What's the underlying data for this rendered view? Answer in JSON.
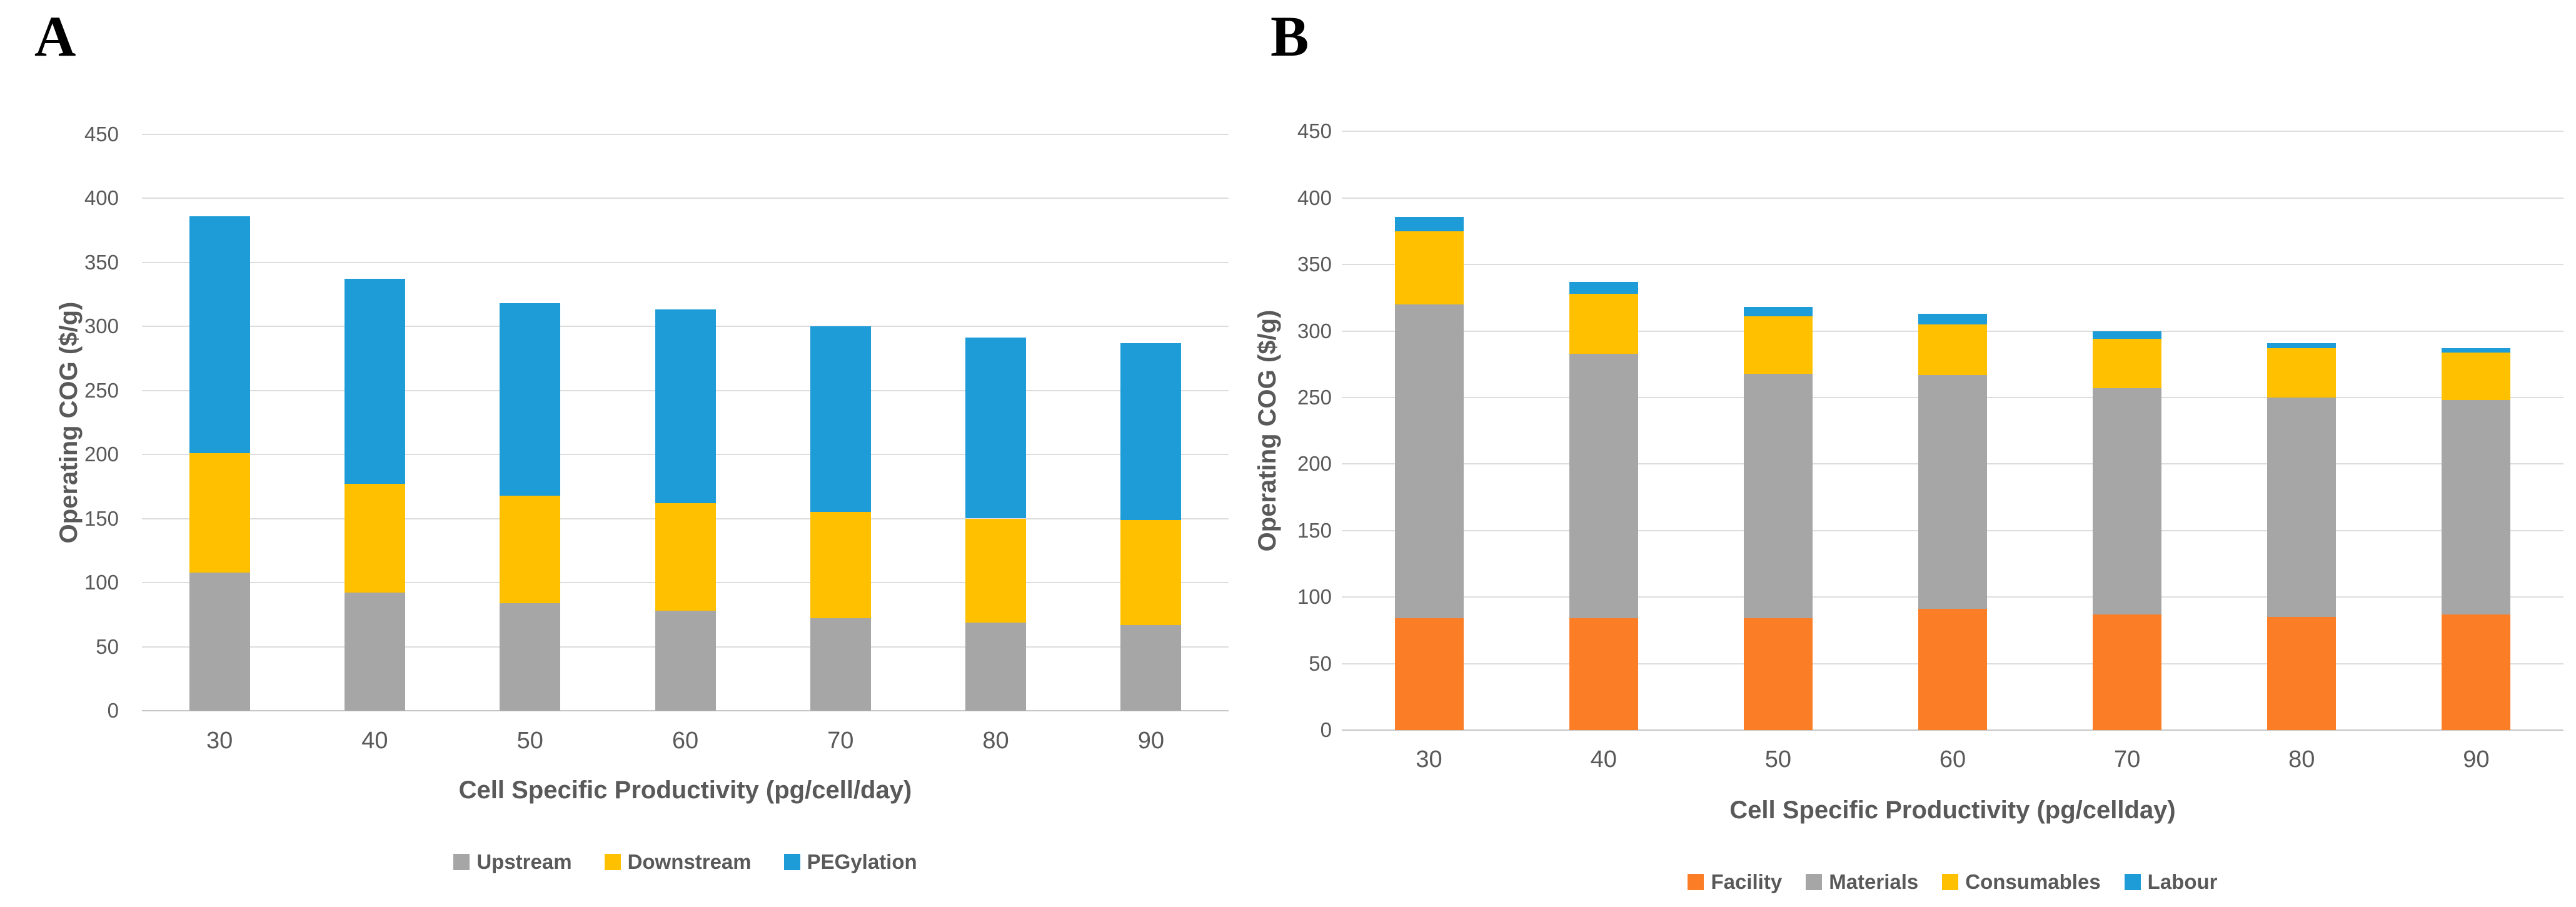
{
  "chart_data": [
    {
      "id": "A",
      "panel_label": "A",
      "type": "bar",
      "stacked": true,
      "categories": [
        "30",
        "40",
        "50",
        "60",
        "70",
        "80",
        "90"
      ],
      "series": [
        {
          "name": "Upstream",
          "color": "#A6A6A6",
          "values": [
            108,
            92,
            84,
            78,
            72,
            69,
            67
          ]
        },
        {
          "name": "Downstream",
          "color": "#FFC000",
          "values": [
            93,
            85,
            84,
            84,
            83,
            81,
            82
          ]
        },
        {
          "name": "PEGylation",
          "color": "#1E9CD7",
          "values": [
            185,
            160,
            150,
            151,
            145,
            141,
            138
          ]
        }
      ],
      "totals": [
        386,
        337,
        318,
        313,
        300,
        291,
        287
      ],
      "title": "",
      "xlabel": "Cell Specific Productivity (pg/cell/day)",
      "ylabel": "Operating COG ($/g)",
      "ylim": [
        0,
        450
      ],
      "ytick_step": 50,
      "ytick_labels": [
        "0",
        "50",
        "100",
        "150",
        "200",
        "250",
        "300",
        "350",
        "400",
        "450"
      ],
      "grid": true,
      "legend_position": "bottom"
    },
    {
      "id": "B",
      "panel_label": "B",
      "type": "bar",
      "stacked": true,
      "categories": [
        "30",
        "40",
        "50",
        "60",
        "70",
        "80",
        "90"
      ],
      "series": [
        {
          "name": "Facility",
          "color": "#FB7D26",
          "values": [
            84,
            84,
            84,
            91,
            87,
            85,
            87
          ]
        },
        {
          "name": "Materials",
          "color": "#A6A6A6",
          "values": [
            236,
            199,
            184,
            176,
            170,
            165,
            161
          ]
        },
        {
          "name": "Consumables",
          "color": "#FFC000",
          "values": [
            55,
            45,
            43,
            38,
            37,
            37,
            36
          ]
        },
        {
          "name": "Labour",
          "color": "#1E9CD7",
          "values": [
            11,
            9,
            7,
            8,
            6,
            4,
            3
          ]
        }
      ],
      "totals": [
        386,
        337,
        318,
        313,
        300,
        291,
        287
      ],
      "title": "",
      "xlabel": "Cell Specific Productivity (pg/cellday)",
      "ylabel": "Operating COG ($/g)",
      "ylim": [
        0,
        450
      ],
      "ytick_step": 50,
      "ytick_labels": [
        "0",
        "50",
        "100",
        "150",
        "200",
        "250",
        "300",
        "350",
        "400",
        "450"
      ],
      "grid": true,
      "legend_position": "bottom"
    }
  ],
  "colors": {
    "text_gray": "#595959",
    "gridline": "#DDDDDD",
    "background": "#FFFFFF",
    "bar_gray": "#A6A6A6",
    "bar_yellow": "#FFC000",
    "bar_blue": "#1E9CD7",
    "bar_orange": "#FB7D26"
  }
}
